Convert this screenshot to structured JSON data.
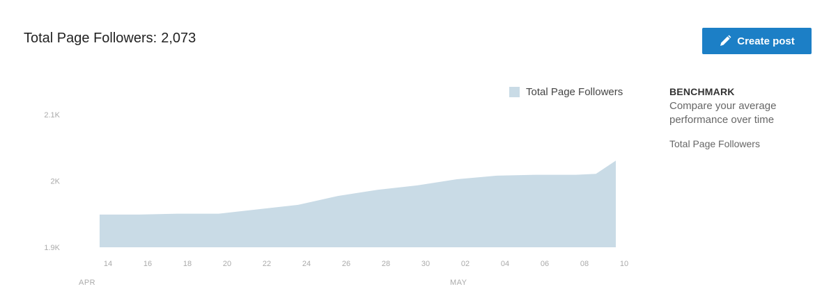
{
  "header": {
    "title_label": "Total Page Followers:",
    "title_value": "2,073",
    "create_post_label": "Create post",
    "create_post_icon": "pencil-icon"
  },
  "benchmark": {
    "heading": "BENCHMARK",
    "description": "Compare your average performance over time",
    "item": "Total Page Followers"
  },
  "colors": {
    "accent": "#1c7fc6",
    "area_fill": "#c9dbe6"
  },
  "chart_data": {
    "type": "area",
    "legend": "Total Page Followers",
    "legend_position": "top-right",
    "grid": false,
    "xlim": [
      "2018-04-14",
      "2018-05-10"
    ],
    "ylim": [
      1950,
      2100
    ],
    "y_ticks": [
      {
        "value": 1950,
        "label": "1.9K"
      },
      {
        "value": 2025,
        "label": "2K"
      },
      {
        "value": 2100,
        "label": "2.1K"
      }
    ],
    "x_ticks": [
      {
        "x": "2018-04-14",
        "label": "14"
      },
      {
        "x": "2018-04-16",
        "label": "16"
      },
      {
        "x": "2018-04-18",
        "label": "18"
      },
      {
        "x": "2018-04-20",
        "label": "20"
      },
      {
        "x": "2018-04-22",
        "label": "22"
      },
      {
        "x": "2018-04-24",
        "label": "24"
      },
      {
        "x": "2018-04-26",
        "label": "26"
      },
      {
        "x": "2018-04-28",
        "label": "28"
      },
      {
        "x": "2018-04-30",
        "label": "30"
      },
      {
        "x": "2018-05-02",
        "label": "02"
      },
      {
        "x": "2018-05-04",
        "label": "04"
      },
      {
        "x": "2018-05-06",
        "label": "06"
      },
      {
        "x": "2018-05-08",
        "label": "08"
      },
      {
        "x": "2018-05-10",
        "label": "10"
      }
    ],
    "month_labels": [
      {
        "x": "2018-04-14",
        "label": "APR"
      },
      {
        "x": "2018-05-02",
        "label": "MAY"
      }
    ],
    "series": [
      {
        "name": "Total Page Followers",
        "points": [
          {
            "x": "2018-04-14",
            "y": 1987
          },
          {
            "x": "2018-04-16",
            "y": 1987
          },
          {
            "x": "2018-04-18",
            "y": 1988
          },
          {
            "x": "2018-04-20",
            "y": 1988
          },
          {
            "x": "2018-04-22",
            "y": 1993
          },
          {
            "x": "2018-04-24",
            "y": 1998
          },
          {
            "x": "2018-04-26",
            "y": 2008
          },
          {
            "x": "2018-04-28",
            "y": 2015
          },
          {
            "x": "2018-04-30",
            "y": 2020
          },
          {
            "x": "2018-05-02",
            "y": 2027
          },
          {
            "x": "2018-05-04",
            "y": 2031
          },
          {
            "x": "2018-05-06",
            "y": 2032
          },
          {
            "x": "2018-05-08",
            "y": 2032
          },
          {
            "x": "2018-05-09",
            "y": 2033
          },
          {
            "x": "2018-05-10",
            "y": 2048
          }
        ]
      }
    ]
  }
}
